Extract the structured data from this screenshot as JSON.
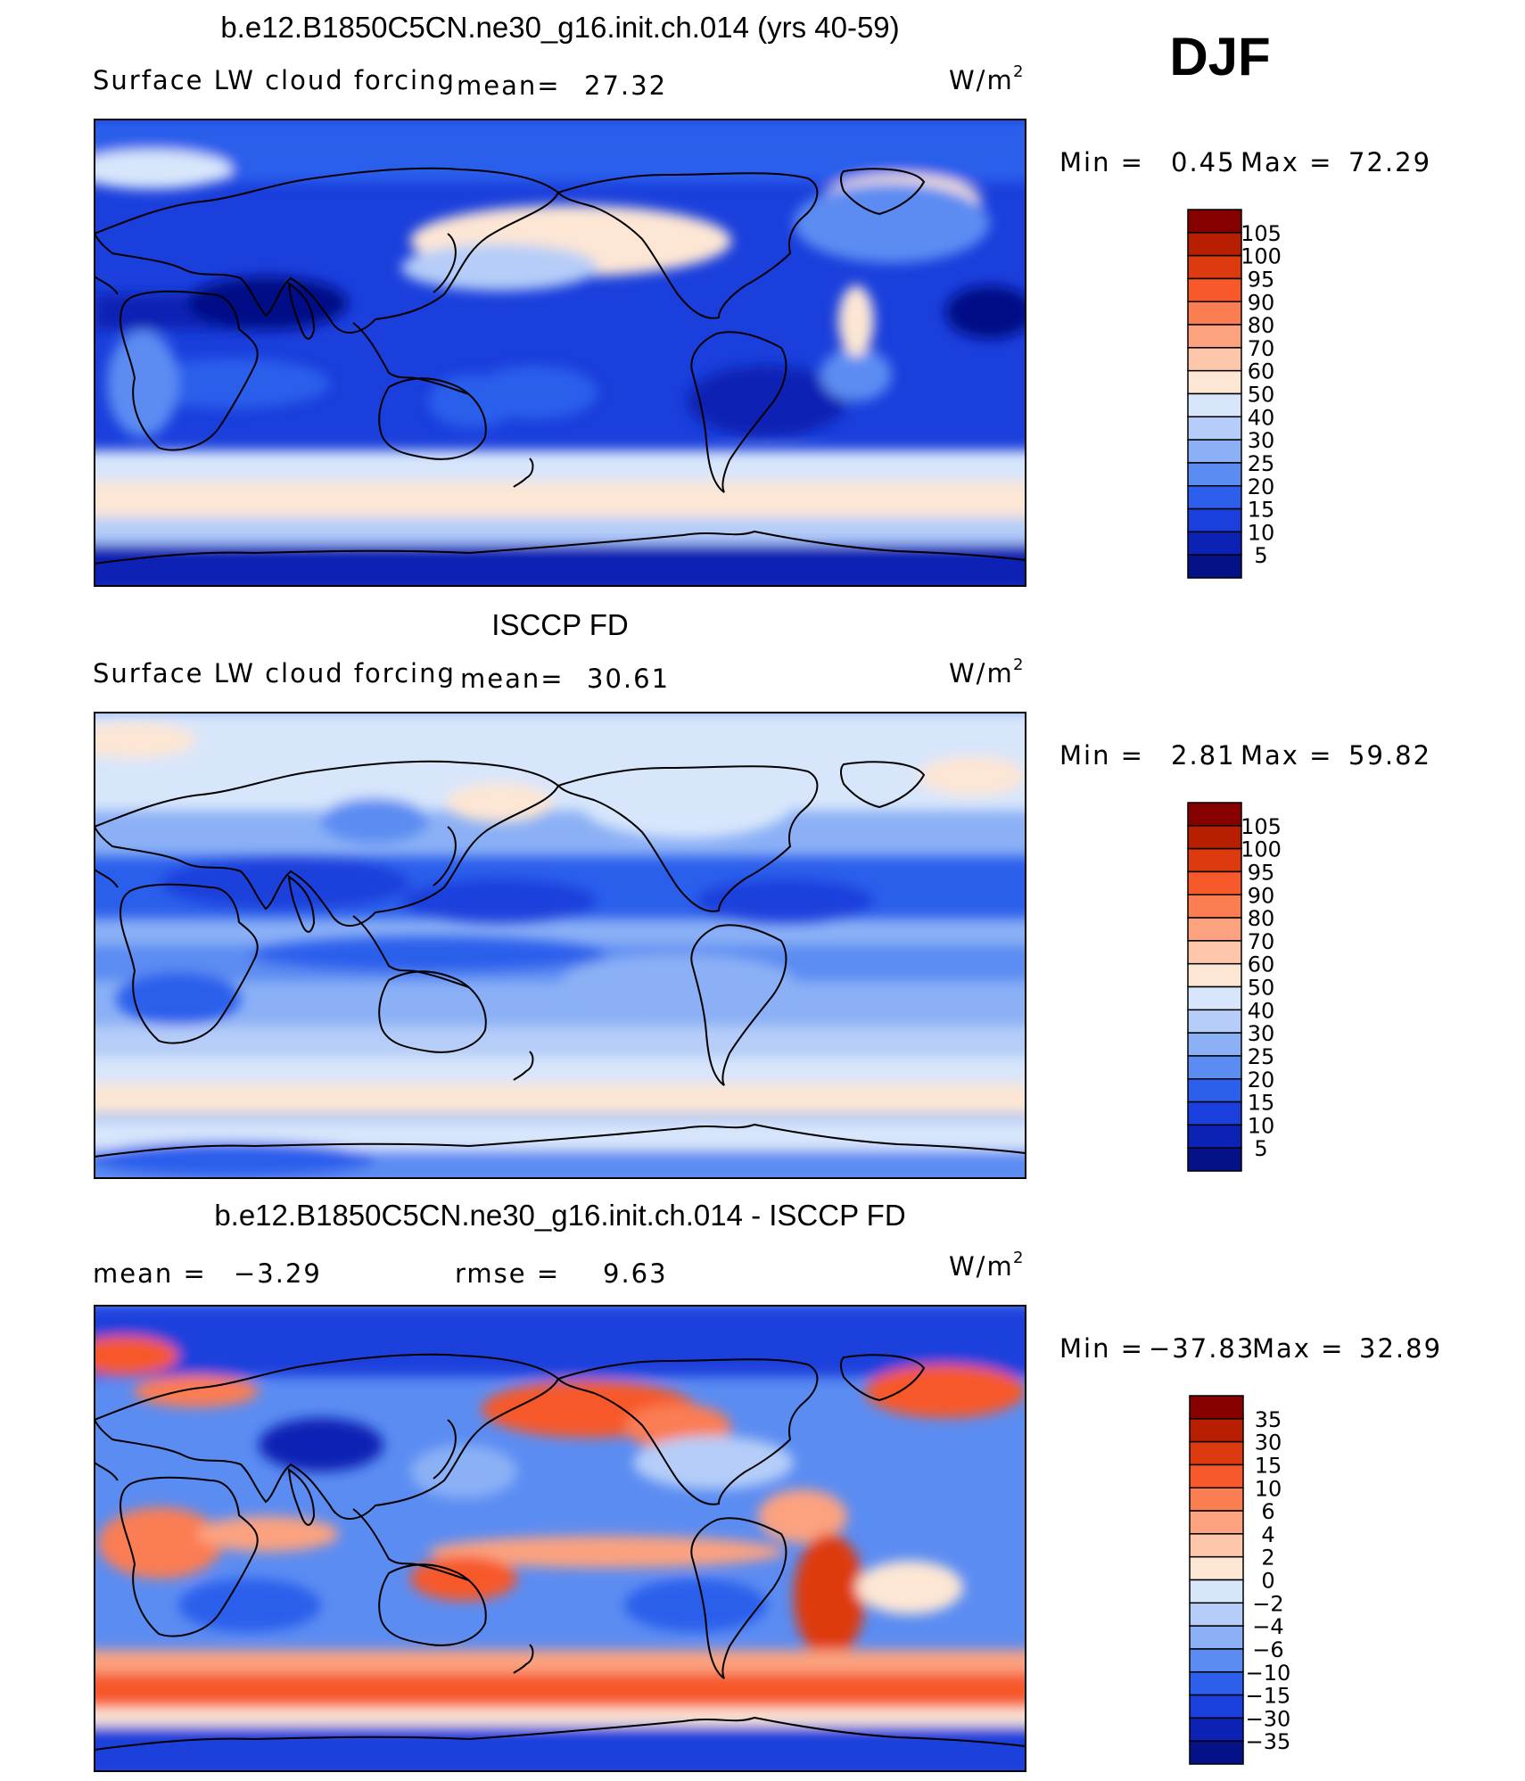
{
  "season": "DJF",
  "units_base": "W/m",
  "units_exp": "2",
  "panels": [
    {
      "id": "model",
      "title": "b.e12.B1850C5CN.ne30_g16.init.ch.014 (yrs 40-59)",
      "field": "Surface LW cloud forcing",
      "stat1_label": "mean=",
      "stat1_value": "27.32",
      "min_label": "Min =",
      "min_value": "0.45",
      "max_label": "Max =",
      "max_value": "72.29",
      "colorbar": {
        "labels": [
          "105",
          "100",
          "95",
          "90",
          "80",
          "70",
          "60",
          "50",
          "40",
          "30",
          "25",
          "20",
          "15",
          "10",
          "5"
        ],
        "colors": [
          "#860000",
          "#b81e00",
          "#de3a0f",
          "#f7592a",
          "#fb7d52",
          "#fca27f",
          "#fec7ac",
          "#fde6d4",
          "#d8e6fb",
          "#b5cdf8",
          "#8bb0f6",
          "#5b8cf2",
          "#2c5fec",
          "#1a3fdc",
          "#0b22b4",
          "#051187"
        ]
      },
      "map_palette": "sequential"
    },
    {
      "id": "obs",
      "title": "ISCCP FD",
      "field": "Surface LW cloud forcing",
      "stat1_label": "mean=",
      "stat1_value": "30.61",
      "min_label": "Min =",
      "min_value": "2.81",
      "max_label": "Max =",
      "max_value": "59.82",
      "colorbar": {
        "labels": [
          "105",
          "100",
          "95",
          "90",
          "80",
          "70",
          "60",
          "50",
          "40",
          "30",
          "25",
          "20",
          "15",
          "10",
          "5"
        ],
        "colors": [
          "#860000",
          "#b81e00",
          "#de3a0f",
          "#f7592a",
          "#fb7d52",
          "#fca27f",
          "#fec7ac",
          "#fde6d4",
          "#d8e6fb",
          "#b5cdf8",
          "#8bb0f6",
          "#5b8cf2",
          "#2c5fec",
          "#1a3fdc",
          "#0b22b4",
          "#051187"
        ]
      },
      "map_palette": "sequential_obs"
    },
    {
      "id": "diff",
      "title": "b.e12.B1850C5CN.ne30_g16.init.ch.014 - ISCCP FD",
      "field": "",
      "stat1_label": "mean =",
      "stat1_value": "−3.29",
      "stat2_label": "rmse =",
      "stat2_value": "9.63",
      "min_label": "Min =",
      "min_value": "−37.83",
      "max_label": "Max =",
      "max_value": "32.89",
      "colorbar": {
        "labels": [
          "35",
          "30",
          "15",
          "10",
          "6",
          "4",
          "2",
          "0",
          "−2",
          "−4",
          "−6",
          "−10",
          "−15",
          "−30",
          "−35"
        ],
        "colors": [
          "#860000",
          "#b81e00",
          "#de3a0f",
          "#f7592a",
          "#fb7d52",
          "#fca27f",
          "#fec7ac",
          "#fde6d4",
          "#d8e6fb",
          "#b5cdf8",
          "#8bb0f6",
          "#5b8cf2",
          "#2c5fec",
          "#1a3fdc",
          "#0b22b4",
          "#051187"
        ]
      },
      "map_palette": "diverging"
    }
  ]
}
